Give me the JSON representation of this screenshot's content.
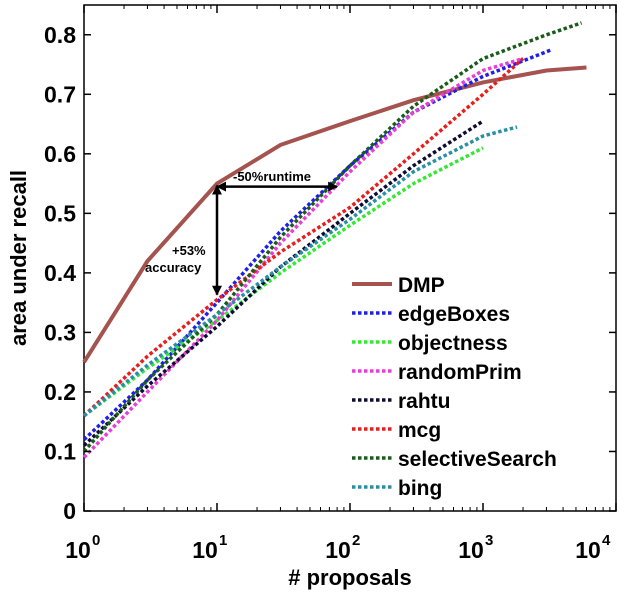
{
  "chart_data": {
    "type": "line",
    "xlabel": "# proposals",
    "ylabel": "area under recall",
    "xscale": "log",
    "xlim": [
      1,
      10000
    ],
    "ylim": [
      0,
      0.85
    ],
    "x_ticks": [
      {
        "base": "10",
        "exp": "0",
        "value": 1
      },
      {
        "base": "10",
        "exp": "1",
        "value": 10
      },
      {
        "base": "10",
        "exp": "2",
        "value": 100
      },
      {
        "base": "10",
        "exp": "3",
        "value": 1000
      },
      {
        "base": "10",
        "exp": "4",
        "value": 10000
      }
    ],
    "y_ticks": [
      "0",
      "0.1",
      "0.2",
      "0.3",
      "0.4",
      "0.5",
      "0.6",
      "0.7",
      "0.8"
    ],
    "grid": false,
    "legend_position": "bottom-right",
    "series": [
      {
        "name": "DMP",
        "color": "#a5534e",
        "style": "solid",
        "x": [
          1,
          3,
          10,
          30,
          100,
          300,
          1000,
          3000,
          6000
        ],
        "y": [
          0.25,
          0.42,
          0.55,
          0.615,
          0.655,
          0.69,
          0.72,
          0.74,
          0.745
        ]
      },
      {
        "name": "edgeBoxes",
        "color": "#1f1fe8",
        "style": "dotted",
        "x": [
          1,
          3,
          10,
          30,
          100,
          300,
          1000,
          3300
        ],
        "y": [
          0.12,
          0.22,
          0.35,
          0.47,
          0.58,
          0.67,
          0.73,
          0.775
        ]
      },
      {
        "name": "objectness",
        "color": "#33e833",
        "style": "dotted",
        "x": [
          1,
          3,
          10,
          30,
          100,
          300,
          1000
        ],
        "y": [
          0.16,
          0.24,
          0.32,
          0.4,
          0.48,
          0.55,
          0.61
        ]
      },
      {
        "name": "randomPrim",
        "color": "#e83dd6",
        "style": "dotted",
        "x": [
          1,
          3,
          10,
          30,
          100,
          300,
          1000,
          2000
        ],
        "y": [
          0.09,
          0.2,
          0.32,
          0.45,
          0.57,
          0.67,
          0.74,
          0.76
        ]
      },
      {
        "name": "rahtu",
        "color": "#0d0d33",
        "style": "dotted",
        "x": [
          1,
          3,
          10,
          30,
          100,
          300,
          1000
        ],
        "y": [
          0.11,
          0.21,
          0.31,
          0.41,
          0.5,
          0.58,
          0.655
        ]
      },
      {
        "name": "mcg",
        "color": "#e81e1e",
        "style": "dotted",
        "x": [
          1,
          3,
          10,
          30,
          100,
          300,
          1000,
          2000
        ],
        "y": [
          0.16,
          0.26,
          0.355,
          0.435,
          0.51,
          0.6,
          0.7,
          0.76
        ]
      },
      {
        "name": "selectiveSearch",
        "color": "#1a5c1a",
        "style": "dotted",
        "x": [
          1,
          3,
          10,
          30,
          100,
          300,
          1000,
          3000,
          5500
        ],
        "y": [
          0.1,
          0.22,
          0.33,
          0.46,
          0.58,
          0.68,
          0.76,
          0.8,
          0.82
        ]
      },
      {
        "name": "bing",
        "color": "#2a8fa3",
        "style": "dotted",
        "x": [
          1,
          3,
          10,
          30,
          100,
          300,
          1000,
          1800
        ],
        "y": [
          0.16,
          0.245,
          0.33,
          0.41,
          0.49,
          0.57,
          0.63,
          0.645
        ]
      }
    ],
    "annotations": {
      "runtime": {
        "text": "-50%runtime",
        "from": [
          10,
          0.545
        ],
        "to": [
          80,
          0.545
        ]
      },
      "accuracy": {
        "line1": "+53%",
        "line2": "accuracy",
        "from": [
          10,
          0.36
        ],
        "to": [
          10,
          0.55
        ]
      }
    }
  }
}
